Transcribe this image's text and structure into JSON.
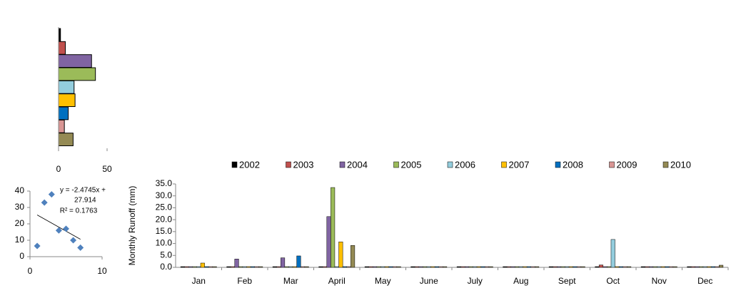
{
  "chart_data": [
    {
      "type": "hbar",
      "categories": [
        null,
        null,
        null,
        null,
        null,
        null,
        null,
        null,
        null
      ],
      "values": [
        2,
        7,
        34,
        38,
        16,
        17,
        10,
        6,
        15
      ],
      "colors": [
        "#000000",
        "#c0504d",
        "#8064a2",
        "#9bbb59",
        "#93cddd",
        "#ffc000",
        "#0070c0",
        "#d99694",
        "#948a54"
      ],
      "xlim": [
        0,
        50
      ],
      "xticks": [
        0,
        50
      ]
    },
    {
      "type": "scatter",
      "x": [
        1,
        2,
        3,
        4,
        5,
        6,
        7
      ],
      "values": [
        6.5,
        33,
        38,
        16,
        17,
        10,
        5.5
      ],
      "color": "#4f81bd",
      "trendline": {
        "slope": -2.4745,
        "intercept": 27.914
      },
      "annotations": [
        "y = -2.4745x +",
        "27.914",
        "R² = 0.1763"
      ],
      "xlim": [
        0,
        10
      ],
      "xticks": [
        0,
        10
      ],
      "ylim": [
        0,
        40
      ],
      "yticks": [
        0,
        10,
        20,
        30,
        40
      ]
    },
    {
      "type": "grouped-bar",
      "y_label": "Monthly  Runoff (mm)",
      "categories": [
        "Jan",
        "Feb",
        "Mar",
        "April",
        "May",
        "June",
        "July",
        "Aug",
        "Sept",
        "Oct",
        "Nov",
        "Dec"
      ],
      "series": [
        {
          "name": "2002",
          "color": "#000000",
          "values": [
            0.3,
            0.3,
            0.3,
            0.3,
            0.3,
            0.3,
            0.3,
            0.3,
            0.3,
            0.3,
            0.3,
            0.3
          ]
        },
        {
          "name": "2003",
          "color": "#c0504d",
          "values": [
            0.3,
            0.3,
            0.3,
            0.3,
            0.3,
            0.3,
            0.3,
            0.3,
            0.3,
            1.0,
            0.3,
            0.3
          ]
        },
        {
          "name": "2004",
          "color": "#8064a2",
          "values": [
            0.3,
            3.5,
            4.0,
            21.3,
            0.3,
            0.3,
            0.3,
            0.3,
            0.3,
            0.3,
            0.3,
            0.3
          ]
        },
        {
          "name": "2005",
          "color": "#9bbb59",
          "values": [
            0.3,
            0.3,
            0.3,
            33.5,
            0.3,
            0.3,
            0.3,
            0.3,
            0.3,
            0.3,
            0.3,
            0.3
          ]
        },
        {
          "name": "2006",
          "color": "#93cddd",
          "values": [
            0.3,
            0.3,
            0.3,
            0.3,
            0.3,
            0.3,
            0.3,
            0.3,
            0.3,
            11.7,
            0.3,
            0.3
          ]
        },
        {
          "name": "2007",
          "color": "#ffc000",
          "values": [
            1.8,
            0.3,
            0.3,
            10.7,
            0.3,
            0.3,
            0.3,
            0.3,
            0.3,
            0.3,
            0.3,
            0.3
          ]
        },
        {
          "name": "2008",
          "color": "#0070c0",
          "values": [
            0.3,
            0.3,
            4.8,
            0.3,
            0.3,
            0.3,
            0.3,
            0.3,
            0.3,
            0.3,
            0.3,
            0.3
          ]
        },
        {
          "name": "2009",
          "color": "#d99694",
          "values": [
            0.3,
            0.3,
            0.3,
            0.3,
            0.3,
            0.3,
            0.3,
            0.3,
            0.3,
            0.3,
            0.3,
            0.3
          ]
        },
        {
          "name": "2010",
          "color": "#948a54",
          "values": [
            0.3,
            0.3,
            0.3,
            9.2,
            0.3,
            0.3,
            0.3,
            0.3,
            0.3,
            0.3,
            0.3,
            0.9
          ]
        }
      ],
      "ylim": [
        0,
        35
      ],
      "yticks": [
        {
          "value": 0,
          "label": "0.0"
        },
        {
          "value": 5,
          "label": "5.0"
        },
        {
          "value": 10,
          "label": "10.0"
        },
        {
          "value": 15,
          "label": "15.0"
        },
        {
          "value": 20,
          "label": "20.0"
        },
        {
          "value": 25,
          "label": "25.0"
        },
        {
          "value": 30,
          "label": "30.0"
        },
        {
          "value": 35,
          "label": "35.0"
        }
      ]
    }
  ]
}
